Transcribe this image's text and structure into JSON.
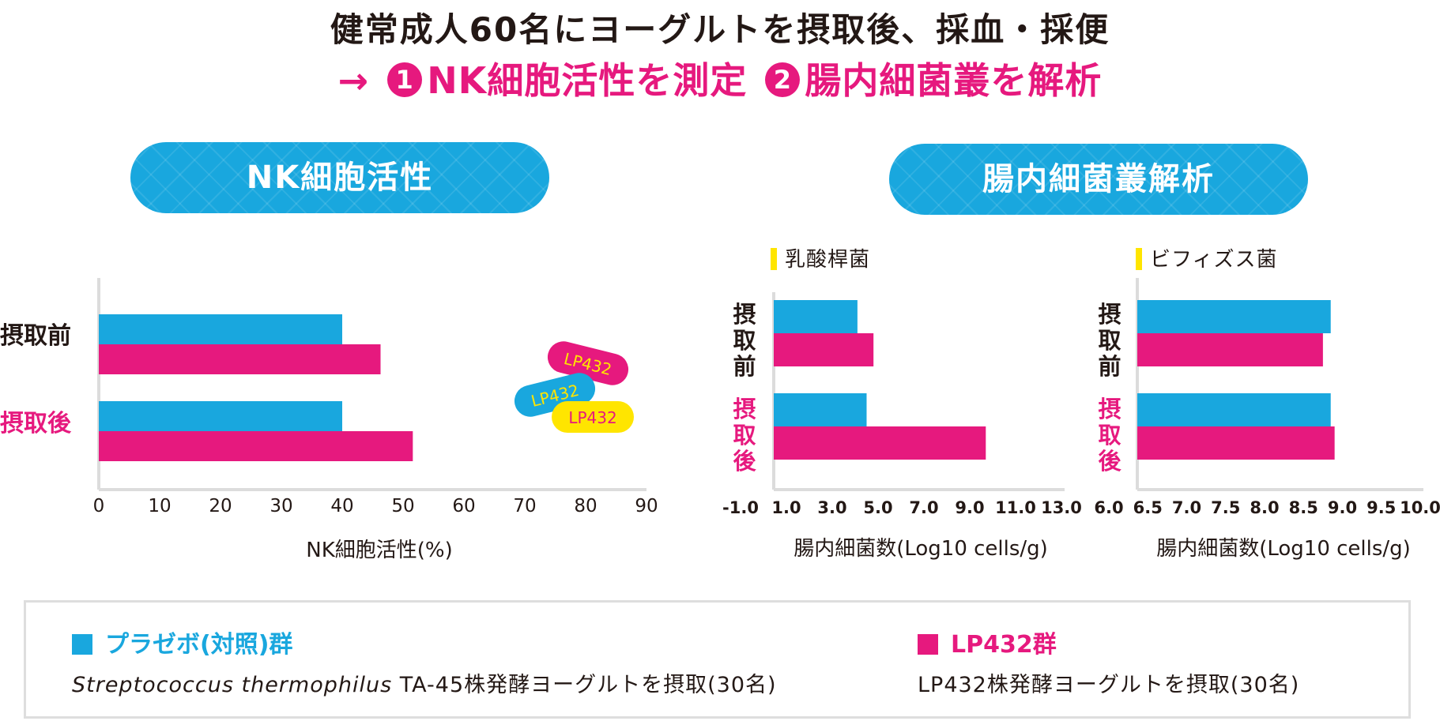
{
  "header": {
    "line1": "健常成人60名にヨーグルトを摂取後、採血・採便",
    "arrow": "→",
    "step1_num": "1",
    "step1_text": "NK細胞活性を測定",
    "step2_num": "2",
    "step2_text": "腸内細菌叢を解析"
  },
  "sections": {
    "nk_title": "NK細胞活性",
    "gut_title": "腸内細菌叢解析",
    "lacto_label": "乳酸桿菌",
    "bifido_label": "ビフィズス菌"
  },
  "colors": {
    "placebo": "#19A7DE",
    "lp432": "#E6197E",
    "accent": "#FFE500"
  },
  "capsules": [
    "LP432",
    "LP432",
    "LP432"
  ],
  "legend": {
    "placebo_title": "プラゼボ(対照)群",
    "placebo_species": "Streptococcus thermophilus",
    "placebo_desc": " TA-45株発酵ヨーグルトを摂取(30名)",
    "lp_title": "LP432群",
    "lp_desc": "LP432株発酵ヨーグルトを摂取(30名)"
  },
  "chart_data": [
    {
      "type": "bar",
      "orientation": "horizontal",
      "title": "NK細胞活性",
      "categories": [
        "摂取前",
        "摂取後"
      ],
      "xlabel": "NK細胞活性(%)",
      "xlim": [
        0,
        90
      ],
      "xticks": [
        "0",
        "10",
        "20",
        "30",
        "40",
        "50",
        "60",
        "70",
        "80",
        "90"
      ],
      "series": [
        {
          "name": "プラゼボ(対照)群",
          "values": [
            40,
            40
          ]
        },
        {
          "name": "LP432群",
          "values": [
            46.3,
            51.6
          ]
        }
      ]
    },
    {
      "type": "bar",
      "orientation": "horizontal",
      "title": "乳酸桿菌",
      "categories": [
        "摂取前",
        "摂取後"
      ],
      "xlabel": "腸内細菌数(Log10 cells/g)",
      "xlim": [
        -1.0,
        13.0
      ],
      "xticks": [
        "-1.0",
        "1.0",
        "3.0",
        "5.0",
        "7.0",
        "9.0",
        "11.0",
        "13.0"
      ],
      "series": [
        {
          "name": "プラゼボ(対照)群",
          "values": [
            4.1,
            4.5
          ]
        },
        {
          "name": "LP432群",
          "values": [
            4.8,
            9.7
          ]
        }
      ]
    },
    {
      "type": "bar",
      "orientation": "horizontal",
      "title": "ビフィズス菌",
      "categories": [
        "摂取前",
        "摂取後"
      ],
      "xlabel": "腸内細菌数(Log10 cells/g)",
      "xlim": [
        6.0,
        10.0
      ],
      "xticks": [
        "6.0",
        "6.5",
        "7.0",
        "7.5",
        "8.0",
        "8.5",
        "9.0",
        "9.5",
        "10.0"
      ],
      "series": [
        {
          "name": "プラゼボ(対照)群",
          "values": [
            8.85,
            8.85
          ]
        },
        {
          "name": "LP432群",
          "values": [
            8.75,
            8.9
          ]
        }
      ]
    }
  ]
}
